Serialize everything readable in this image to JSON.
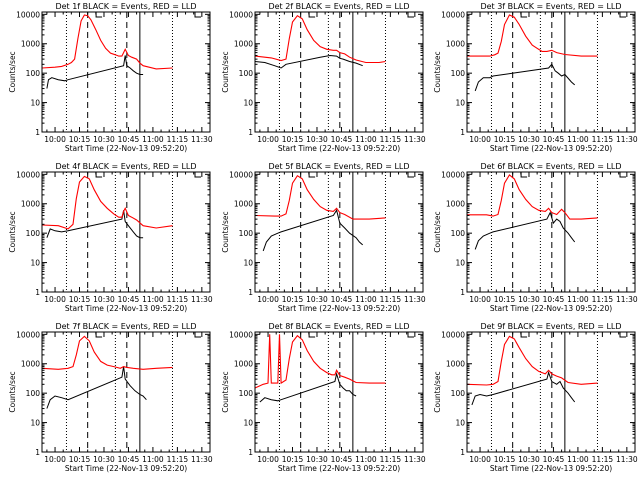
{
  "chart_data": {
    "type": "line",
    "layout": "3x3 grid",
    "ylabel": "Counts/sec",
    "xlabel": "Start Time (22-Nov-13 09:52:20)",
    "x_ticks": [
      "10:00",
      "10:15",
      "10:30",
      "10:45",
      "11:00",
      "11:15",
      "11:30"
    ],
    "y_ticks": [
      "1",
      "10",
      "100",
      "1000",
      "10000"
    ],
    "xlim": [
      "09:52",
      "11:35"
    ],
    "ylim": [
      1,
      12000
    ],
    "yscale": "log",
    "series_colors": {
      "events": "#000000",
      "lld": "#ff0000"
    },
    "markers": {
      "dotted": [
        "10:07",
        "10:37",
        "11:12"
      ],
      "dashed": [
        "10:20",
        "10:44"
      ],
      "solid": [
        "10:52"
      ]
    },
    "panels": [
      {
        "title": "Det 1f BLACK = Events, RED = LLD",
        "lld": [
          [
            0,
            150
          ],
          [
            8,
            160
          ],
          [
            12,
            170
          ],
          [
            16,
            200
          ],
          [
            18,
            230
          ],
          [
            20,
            300
          ],
          [
            22,
            1500
          ],
          [
            24,
            6000
          ],
          [
            26,
            9500
          ],
          [
            28,
            9000
          ],
          [
            30,
            6500
          ],
          [
            33,
            3000
          ],
          [
            36,
            1300
          ],
          [
            39,
            700
          ],
          [
            42,
            480
          ],
          [
            45,
            420
          ],
          [
            47,
            380
          ],
          [
            49,
            380
          ],
          [
            50,
            500
          ],
          [
            51,
            650
          ],
          [
            53,
            400
          ],
          [
            55,
            350
          ],
          [
            58,
            300
          ],
          [
            60,
            220
          ],
          [
            62,
            180
          ],
          [
            70,
            140
          ],
          [
            80,
            150
          ]
        ],
        "events": [
          [
            3,
            30
          ],
          [
            4,
            60
          ],
          [
            6,
            70
          ],
          [
            10,
            60
          ],
          [
            14,
            55
          ],
          [
            16,
            60
          ],
          [
            50,
            180
          ],
          [
            51,
            400
          ],
          [
            52,
            180
          ],
          [
            54,
            150
          ],
          [
            56,
            120
          ],
          [
            58,
            100
          ],
          [
            60,
            90
          ],
          [
            62,
            90
          ]
        ]
      },
      {
        "title": "Det 2f BLACK = Events, RED = LLD",
        "lld": [
          [
            0,
            380
          ],
          [
            10,
            330
          ],
          [
            16,
            270
          ],
          [
            19,
            300
          ],
          [
            21,
            1500
          ],
          [
            23,
            5500
          ],
          [
            26,
            9000
          ],
          [
            29,
            7000
          ],
          [
            32,
            3000
          ],
          [
            36,
            1300
          ],
          [
            40,
            800
          ],
          [
            44,
            650
          ],
          [
            48,
            600
          ],
          [
            50,
            600
          ],
          [
            52,
            500
          ],
          [
            55,
            450
          ],
          [
            58,
            350
          ],
          [
            62,
            280
          ],
          [
            68,
            230
          ],
          [
            76,
            230
          ],
          [
            80,
            250
          ]
        ],
        "events": [
          [
            0,
            250
          ],
          [
            6,
            230
          ],
          [
            12,
            180
          ],
          [
            16,
            150
          ],
          [
            19,
            200
          ],
          [
            40,
            350
          ],
          [
            46,
            400
          ],
          [
            50,
            380
          ],
          [
            52,
            320
          ],
          [
            54,
            300
          ],
          [
            58,
            250
          ],
          [
            62,
            220
          ],
          [
            66,
            180
          ]
        ]
      },
      {
        "title": "Det 3f BLACK = Events, RED = LLD",
        "lld": [
          [
            0,
            380
          ],
          [
            14,
            380
          ],
          [
            17,
            420
          ],
          [
            19,
            480
          ],
          [
            21,
            1200
          ],
          [
            23,
            4500
          ],
          [
            26,
            9500
          ],
          [
            29,
            8000
          ],
          [
            32,
            4500
          ],
          [
            36,
            1800
          ],
          [
            40,
            900
          ],
          [
            43,
            700
          ],
          [
            46,
            550
          ],
          [
            49,
            550
          ],
          [
            52,
            600
          ],
          [
            55,
            500
          ],
          [
            60,
            430
          ],
          [
            70,
            380
          ],
          [
            80,
            380
          ]
        ],
        "events": [
          [
            5,
            25
          ],
          [
            7,
            50
          ],
          [
            10,
            70
          ],
          [
            14,
            70
          ],
          [
            16,
            80
          ],
          [
            50,
            150
          ],
          [
            52,
            200
          ],
          [
            54,
            120
          ],
          [
            56,
            100
          ],
          [
            58,
            80
          ],
          [
            60,
            90
          ],
          [
            64,
            50
          ],
          [
            66,
            40
          ]
        ]
      },
      {
        "title": "Det 4f BLACK = Events, RED = LLD",
        "lld": [
          [
            0,
            190
          ],
          [
            10,
            180
          ],
          [
            16,
            140
          ],
          [
            19,
            200
          ],
          [
            21,
            1500
          ],
          [
            23,
            5500
          ],
          [
            26,
            8500
          ],
          [
            29,
            7000
          ],
          [
            32,
            3000
          ],
          [
            36,
            1200
          ],
          [
            40,
            700
          ],
          [
            44,
            450
          ],
          [
            47,
            350
          ],
          [
            49,
            350
          ],
          [
            50,
            550
          ],
          [
            51,
            700
          ],
          [
            53,
            400
          ],
          [
            55,
            350
          ],
          [
            58,
            280
          ],
          [
            62,
            180
          ],
          [
            70,
            150
          ],
          [
            80,
            180
          ]
        ],
        "events": [
          [
            3,
            70
          ],
          [
            5,
            140
          ],
          [
            8,
            120
          ],
          [
            12,
            110
          ],
          [
            16,
            120
          ],
          [
            49,
            300
          ],
          [
            50,
            600
          ],
          [
            51,
            250
          ],
          [
            53,
            180
          ],
          [
            56,
            110
          ],
          [
            58,
            80
          ],
          [
            60,
            70
          ],
          [
            62,
            70
          ]
        ]
      },
      {
        "title": "Det 5f BLACK = Events, RED = LLD",
        "lld": [
          [
            0,
            400
          ],
          [
            12,
            380
          ],
          [
            16,
            380
          ],
          [
            19,
            450
          ],
          [
            21,
            1300
          ],
          [
            23,
            5000
          ],
          [
            26,
            9000
          ],
          [
            29,
            7000
          ],
          [
            32,
            3000
          ],
          [
            36,
            1400
          ],
          [
            40,
            800
          ],
          [
            44,
            600
          ],
          [
            48,
            550
          ],
          [
            50,
            700
          ],
          [
            52,
            500
          ],
          [
            55,
            430
          ],
          [
            60,
            300
          ],
          [
            70,
            300
          ],
          [
            80,
            330
          ]
        ],
        "events": [
          [
            5,
            25
          ],
          [
            7,
            50
          ],
          [
            10,
            80
          ],
          [
            14,
            100
          ],
          [
            16,
            110
          ],
          [
            48,
            400
          ],
          [
            50,
            600
          ],
          [
            52,
            220
          ],
          [
            55,
            150
          ],
          [
            58,
            100
          ],
          [
            62,
            70
          ],
          [
            64,
            50
          ],
          [
            66,
            40
          ]
        ]
      },
      {
        "title": "Det 6f BLACK = Events, RED = LLD",
        "lld": [
          [
            0,
            420
          ],
          [
            12,
            420
          ],
          [
            16,
            380
          ],
          [
            19,
            430
          ],
          [
            21,
            1300
          ],
          [
            23,
            5000
          ],
          [
            26,
            9500
          ],
          [
            29,
            7000
          ],
          [
            32,
            3000
          ],
          [
            36,
            1400
          ],
          [
            40,
            800
          ],
          [
            44,
            600
          ],
          [
            48,
            550
          ],
          [
            50,
            700
          ],
          [
            52,
            500
          ],
          [
            55,
            430
          ],
          [
            58,
            650
          ],
          [
            60,
            500
          ],
          [
            63,
            300
          ],
          [
            70,
            300
          ],
          [
            80,
            330
          ]
        ],
        "events": [
          [
            5,
            28
          ],
          [
            7,
            55
          ],
          [
            10,
            80
          ],
          [
            14,
            100
          ],
          [
            16,
            110
          ],
          [
            49,
            300
          ],
          [
            51,
            500
          ],
          [
            53,
            220
          ],
          [
            55,
            300
          ],
          [
            57,
            250
          ],
          [
            59,
            150
          ],
          [
            62,
            100
          ],
          [
            64,
            70
          ],
          [
            66,
            50
          ]
        ]
      },
      {
        "title": "Det 7f BLACK = Events, RED = LLD",
        "lld": [
          [
            0,
            700
          ],
          [
            10,
            650
          ],
          [
            16,
            700
          ],
          [
            19,
            800
          ],
          [
            21,
            2000
          ],
          [
            23,
            6000
          ],
          [
            26,
            8500
          ],
          [
            29,
            6000
          ],
          [
            32,
            2500
          ],
          [
            36,
            1200
          ],
          [
            40,
            900
          ],
          [
            44,
            800
          ],
          [
            48,
            700
          ],
          [
            50,
            800
          ],
          [
            52,
            750
          ],
          [
            56,
            700
          ],
          [
            62,
            650
          ],
          [
            70,
            700
          ],
          [
            80,
            750
          ]
        ],
        "events": [
          [
            3,
            30
          ],
          [
            5,
            60
          ],
          [
            8,
            80
          ],
          [
            12,
            70
          ],
          [
            16,
            60
          ],
          [
            49,
            350
          ],
          [
            50,
            800
          ],
          [
            51,
            300
          ],
          [
            54,
            180
          ],
          [
            57,
            120
          ],
          [
            60,
            90
          ],
          [
            62,
            80
          ],
          [
            64,
            60
          ]
        ]
      },
      {
        "title": "Det 8f BLACK = Events, RED = LLD",
        "lld": [
          [
            0,
            150
          ],
          [
            5,
            200
          ],
          [
            8,
            220
          ],
          [
            9,
            10000
          ],
          [
            10,
            220
          ],
          [
            14,
            220
          ],
          [
            15,
            10000
          ],
          [
            16,
            220
          ],
          [
            19,
            280
          ],
          [
            21,
            1500
          ],
          [
            23,
            5500
          ],
          [
            26,
            9000
          ],
          [
            29,
            6500
          ],
          [
            32,
            2800
          ],
          [
            36,
            1200
          ],
          [
            40,
            700
          ],
          [
            44,
            500
          ],
          [
            47,
            420
          ],
          [
            49,
            420
          ],
          [
            50,
            600
          ],
          [
            52,
            400
          ],
          [
            55,
            350
          ],
          [
            58,
            300
          ],
          [
            62,
            230
          ],
          [
            70,
            220
          ],
          [
            80,
            220
          ]
        ],
        "events": [
          [
            3,
            50
          ],
          [
            6,
            70
          ],
          [
            10,
            60
          ],
          [
            14,
            55
          ],
          [
            16,
            60
          ],
          [
            49,
            250
          ],
          [
            50,
            450
          ],
          [
            52,
            200
          ],
          [
            54,
            150
          ],
          [
            56,
            120
          ],
          [
            58,
            120
          ],
          [
            60,
            90
          ],
          [
            62,
            80
          ]
        ]
      },
      {
        "title": "Det 9f BLACK = Events, RED = LLD",
        "lld": [
          [
            0,
            200
          ],
          [
            12,
            190
          ],
          [
            16,
            200
          ],
          [
            19,
            250
          ],
          [
            21,
            1200
          ],
          [
            23,
            4500
          ],
          [
            26,
            8500
          ],
          [
            29,
            7000
          ],
          [
            32,
            3500
          ],
          [
            36,
            1500
          ],
          [
            40,
            800
          ],
          [
            44,
            550
          ],
          [
            48,
            450
          ],
          [
            50,
            600
          ],
          [
            52,
            450
          ],
          [
            55,
            380
          ],
          [
            58,
            330
          ],
          [
            62,
            230
          ],
          [
            70,
            200
          ],
          [
            80,
            220
          ]
        ],
        "events": [
          [
            3,
            40
          ],
          [
            5,
            80
          ],
          [
            8,
            90
          ],
          [
            12,
            80
          ],
          [
            16,
            90
          ],
          [
            49,
            300
          ],
          [
            50,
            500
          ],
          [
            52,
            250
          ],
          [
            55,
            200
          ],
          [
            57,
            250
          ],
          [
            59,
            150
          ],
          [
            62,
            100
          ],
          [
            64,
            70
          ],
          [
            66,
            50
          ]
        ]
      }
    ]
  }
}
